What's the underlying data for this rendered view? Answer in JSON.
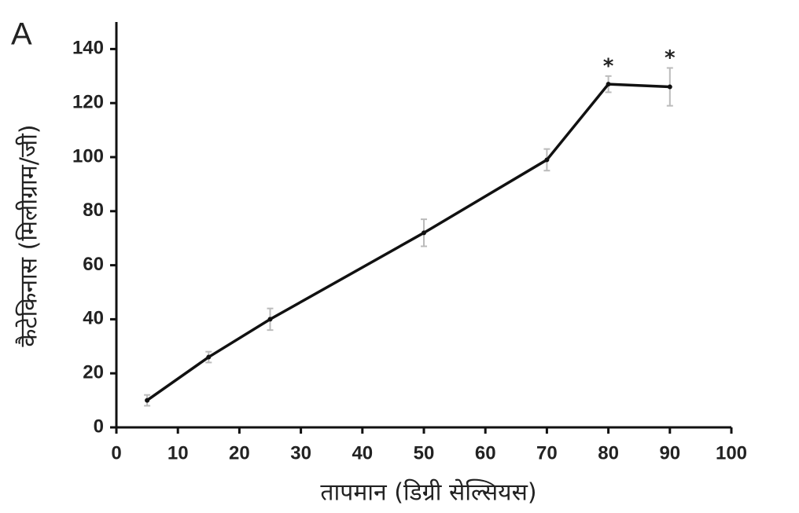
{
  "chart_data": {
    "type": "line",
    "panel_label": "A",
    "x_label": "तापमान (डिग्री सेल्सियस)",
    "y_label": "कैटेकिनास (मिलीग्राम/जी)",
    "x": [
      5,
      15,
      25,
      50,
      70,
      80,
      90
    ],
    "series": [
      {
        "color": "#111111",
        "values": [
          10,
          26,
          40,
          72,
          99,
          127,
          126
        ],
        "errors": [
          2,
          2,
          4,
          5,
          4,
          3,
          7
        ]
      }
    ],
    "annotations": [
      {
        "text": "*",
        "x": 80
      },
      {
        "text": "*",
        "x": 90
      }
    ],
    "xlim": [
      0,
      100
    ],
    "xticks": [
      0,
      10,
      20,
      30,
      40,
      50,
      60,
      70,
      80,
      90,
      100
    ],
    "ylim": [
      0,
      150
    ],
    "yticks": [
      0,
      20,
      40,
      60,
      80,
      100,
      120,
      140
    ],
    "grid": false
  }
}
